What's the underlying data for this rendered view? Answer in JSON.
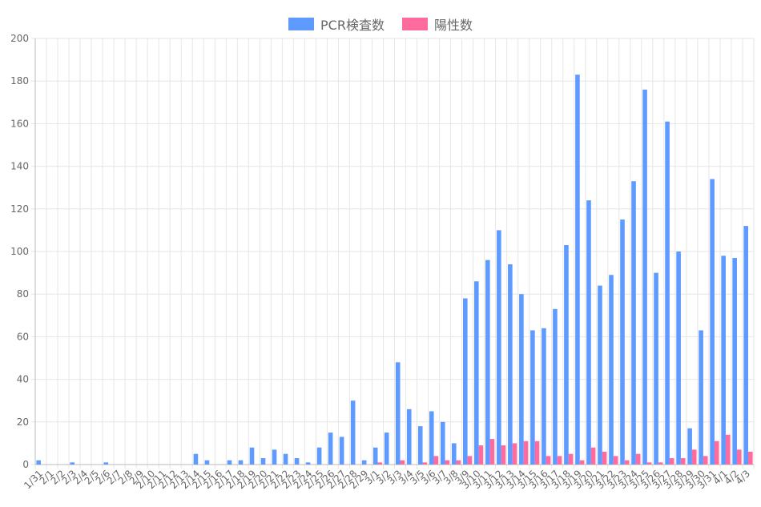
{
  "chart_data": {
    "type": "bar",
    "categories": [
      "1/31",
      "2/1",
      "2/2",
      "2/3",
      "2/4",
      "2/5",
      "2/6",
      "2/7",
      "2/8",
      "2/9",
      "2/10",
      "2/11",
      "2/12",
      "2/13",
      "2/14",
      "2/15",
      "2/16",
      "2/17",
      "2/18",
      "2/19",
      "2/20",
      "2/21",
      "2/22",
      "2/23",
      "2/24",
      "2/25",
      "2/26",
      "2/27",
      "2/28",
      "2/29",
      "3/1",
      "3/2",
      "3/3",
      "3/4",
      "3/5",
      "3/6",
      "3/7",
      "3/8",
      "3/9",
      "3/10",
      "3/11",
      "3/12",
      "3/13",
      "3/14",
      "3/15",
      "3/16",
      "3/17",
      "3/18",
      "3/19",
      "3/20",
      "3/21",
      "3/22",
      "3/23",
      "3/24",
      "3/25",
      "3/26",
      "3/27",
      "3/28",
      "3/29",
      "3/30",
      "3/31",
      "4/1",
      "4/2",
      "4/3"
    ],
    "series": [
      {
        "name": "PCR検査数",
        "color": "#5f9bff",
        "values": [
          2,
          0,
          0,
          1,
          0,
          0,
          1,
          0,
          0,
          0,
          0,
          0,
          0,
          0,
          5,
          2,
          0,
          2,
          2,
          8,
          3,
          7,
          5,
          3,
          1,
          8,
          15,
          13,
          30,
          2,
          8,
          15,
          48,
          26,
          18,
          25,
          20,
          10,
          78,
          86,
          96,
          110,
          94,
          80,
          63,
          64,
          73,
          103,
          183,
          124,
          84,
          89,
          115,
          133,
          176,
          90,
          161,
          100,
          17,
          63,
          134,
          98,
          97,
          112
        ]
      },
      {
        "name": "陽性数",
        "color": "#ff6b9f",
        "values": [
          0,
          0,
          0,
          0,
          0,
          0,
          0,
          0,
          0,
          0,
          0,
          0,
          0,
          0,
          0,
          0,
          0,
          0,
          0,
          0,
          0,
          0,
          0,
          0,
          0,
          0,
          0,
          0,
          0,
          0,
          1,
          0,
          2,
          0,
          1,
          4,
          2,
          2,
          4,
          9,
          12,
          9,
          10,
          11,
          11,
          4,
          4,
          5,
          2,
          8,
          6,
          4,
          2,
          5,
          1,
          1,
          3,
          3,
          7,
          4,
          11,
          14,
          7,
          6
        ]
      }
    ],
    "yticks": [
      "0",
      "20",
      "40",
      "60",
      "80",
      "100",
      "120",
      "140",
      "160",
      "180",
      "200"
    ],
    "ylim": [
      0,
      200
    ],
    "grid": true,
    "legend_position": "top-center"
  }
}
